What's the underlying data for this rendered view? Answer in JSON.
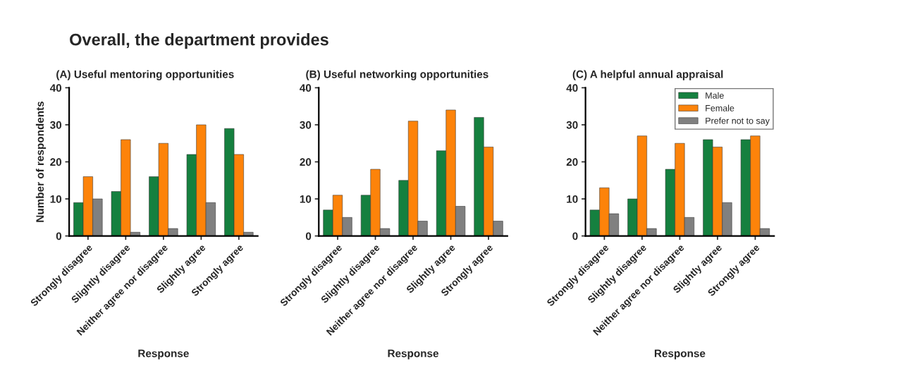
{
  "chart_data": [
    {
      "type": "bar",
      "title": "(A) Useful mentoring opportunities",
      "annotations": [
        "Overall, the department provides"
      ],
      "xlabel": "Response",
      "ylabel": "Number of respondents",
      "categories": [
        "Strongly disagree",
        "Slightly disagree",
        "Neither agree nor disagree",
        "Slightly agree",
        "Strongly agree"
      ],
      "series": [
        {
          "color": "#15803f",
          "values": [
            9,
            12,
            16,
            22,
            29
          ]
        },
        {
          "color": "#fd830a",
          "values": [
            16,
            26,
            25,
            30,
            22
          ]
        },
        {
          "color": "#808080",
          "values": [
            10,
            1,
            2,
            9,
            1
          ]
        }
      ],
      "ylim": [
        0,
        40
      ],
      "yticks": [
        0,
        10,
        20,
        30,
        40
      ],
      "grid": false,
      "legend": false
    },
    {
      "type": "bar",
      "title": "(B) Useful networking opportunities",
      "xlabel": "Response",
      "categories": [
        "Strongly disagree",
        "Slightly disagree",
        "Neither agree nor disagree",
        "Slightly agree",
        "Strongly agree"
      ],
      "series": [
        {
          "color": "#15803f",
          "values": [
            7,
            11,
            15,
            23,
            32
          ]
        },
        {
          "color": "#fd830a",
          "values": [
            11,
            18,
            31,
            34,
            24
          ]
        },
        {
          "color": "#808080",
          "values": [
            5,
            2,
            4,
            8,
            4
          ]
        }
      ],
      "ylim": [
        0,
        40
      ],
      "yticks": [
        0,
        10,
        20,
        30,
        40
      ],
      "grid": false,
      "legend": false
    },
    {
      "type": "bar",
      "title": "(C) A helpful annual appraisal",
      "xlabel": "Response",
      "categories": [
        "Strongly disagree",
        "Slightly disagree",
        "Neither agree nor disagree",
        "Slightly agree",
        "Strongly agree"
      ],
      "series": [
        {
          "name": "Male",
          "color": "#15803f",
          "values": [
            7,
            10,
            18,
            26,
            26
          ]
        },
        {
          "name": "Female",
          "color": "#fd830a",
          "values": [
            13,
            27,
            25,
            24,
            27
          ]
        },
        {
          "name": "Prefer not to say",
          "color": "#808080",
          "values": [
            6,
            2,
            5,
            9,
            2
          ]
        }
      ],
      "ylim": [
        0,
        40
      ],
      "yticks": [
        0,
        10,
        20,
        30,
        40
      ],
      "grid": false,
      "legend": "top right"
    }
  ]
}
